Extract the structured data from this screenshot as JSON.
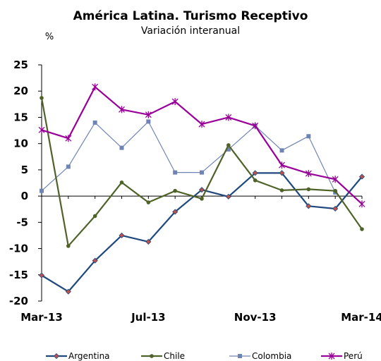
{
  "chart_data": {
    "type": "line",
    "title": "América Latina. Turismo Receptivo",
    "subtitle": "Variación interanual",
    "ylabel": "%",
    "xlabel": "",
    "ylim": [
      -20,
      25
    ],
    "yticks": [
      25,
      20,
      15,
      10,
      5,
      0,
      -5,
      -10,
      -15,
      -20
    ],
    "x": [
      "Mar-13",
      "Apr-13",
      "May-13",
      "Jun-13",
      "Jul-13",
      "Aug-13",
      "Sep-13",
      "Oct-13",
      "Nov-13",
      "Dec-13",
      "Jan-14",
      "Feb-14",
      "Mar-14"
    ],
    "xtick_labels": [
      "Mar-13",
      "Jul-13",
      "Nov-13",
      "Mar-14"
    ],
    "grid": false,
    "legend_position": "bottom",
    "series": [
      {
        "name": "Argentina",
        "color": "#1f497d",
        "marker": "diamond",
        "values": [
          -15.1,
          -18.2,
          -12.3,
          -7.5,
          -8.7,
          -3.0,
          1.2,
          -0.1,
          4.4,
          4.4,
          -1.9,
          -2.4,
          3.7
        ]
      },
      {
        "name": "Chile",
        "color": "#4f6228",
        "marker": "circle",
        "values": [
          18.7,
          -9.5,
          -3.8,
          2.6,
          -1.2,
          1.0,
          -0.5,
          9.7,
          3.0,
          1.1,
          1.3,
          1.0,
          -6.3
        ]
      },
      {
        "name": "Colombia",
        "color": "#7084b4",
        "marker": "square",
        "values": [
          1.0,
          5.6,
          14.0,
          9.2,
          14.2,
          4.5,
          4.5,
          8.9,
          13.4,
          8.7,
          11.4,
          0.7,
          null
        ]
      },
      {
        "name": "Perú",
        "color": "#990099",
        "marker": "star",
        "values": [
          12.6,
          11.0,
          20.8,
          16.5,
          15.5,
          18.0,
          13.7,
          15.0,
          13.4,
          5.9,
          4.3,
          3.2,
          -1.5
        ]
      }
    ]
  }
}
